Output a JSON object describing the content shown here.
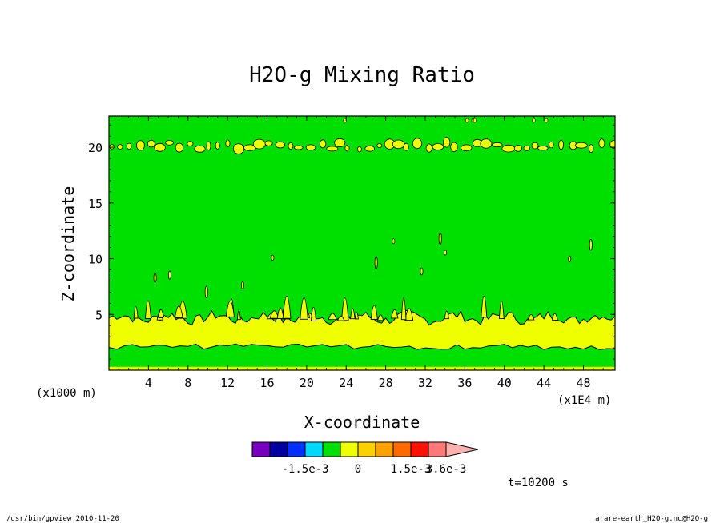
{
  "chart_data": {
    "type": "heatmap",
    "title": "H2O-g Mixing Ratio",
    "xlabel": "X-coordinate",
    "ylabel": "Z-coordinate",
    "x_unit_left": "(x1000 m)",
    "x_unit_right": "(x1E4 m)",
    "xlim": [
      0,
      51.2
    ],
    "ylim": [
      0,
      22.8
    ],
    "x_ticks": [
      4,
      8,
      12,
      16,
      20,
      24,
      28,
      32,
      36,
      40,
      44,
      48
    ],
    "x_tick_labels": [
      "4",
      "8",
      "12",
      "16",
      "20",
      "24",
      "28",
      "32",
      "36",
      "40",
      "44",
      "48"
    ],
    "y_ticks": [
      5,
      10,
      15,
      20
    ],
    "y_tick_labels": [
      "5",
      "10",
      "15",
      "20"
    ],
    "colorbar": {
      "colors": [
        "#7a00c0",
        "#0000a0",
        "#0030ff",
        "#00d8ff",
        "#00e000",
        "#f0ff00",
        "#ffd000",
        "#ffa000",
        "#ff6a00",
        "#ff1000",
        "#ff7878",
        "#ffb0b0"
      ],
      "labels": [
        "-1.5e-3",
        "0",
        "1.5e-3",
        "3.6e-3"
      ]
    },
    "regions": [
      {
        "name": "green-background",
        "value_range": "0 to 5e-4",
        "color": "#00e000"
      },
      {
        "name": "yellow-band-lower",
        "z_range": [
          0,
          0.3
        ],
        "color": "#f0ff00"
      },
      {
        "name": "green-band-lower",
        "z_range": [
          0.3,
          2.2
        ],
        "color": "#00e000"
      },
      {
        "name": "yellow-band-main",
        "z_range": [
          2.2,
          5.0
        ],
        "color": "#f0ff00"
      },
      {
        "name": "yellow-band-upper",
        "z_range": [
          19.8,
          20.5
        ],
        "color": "#f0ff00"
      }
    ]
  },
  "time_label": "t=10200 s",
  "footer": {
    "left": "/usr/bin/gpview  2010-11-20",
    "right": "arare-earth_H2O-g.nc@H2O-g"
  }
}
